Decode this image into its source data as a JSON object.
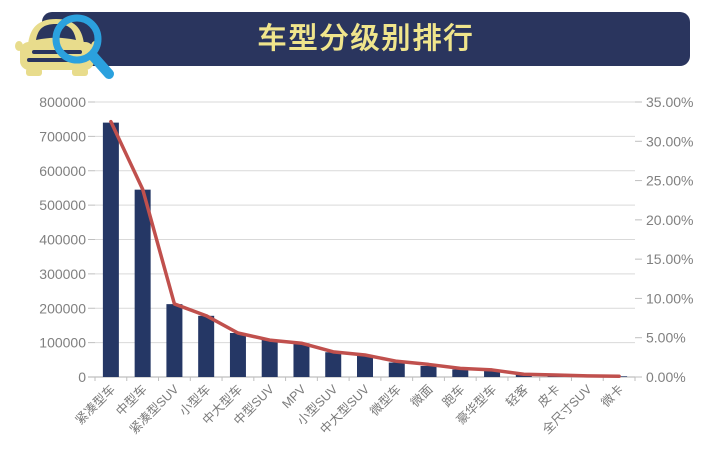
{
  "header": {
    "title": "车型分级别排行",
    "banner_bg": "#2A355E",
    "title_color": "#F0E58C",
    "icons": {
      "car_icon_color": "#E8DC8C",
      "magnifier_icon_color": "#2BA1DE"
    }
  },
  "chart_data": {
    "type": "bar",
    "subtype": "bar-with-line-combo",
    "title": "车型分级别排行",
    "xlabel": "",
    "ylabel_left": "",
    "ylabel_right": "",
    "legend": "none",
    "grid": "horizontal-left-axis-only",
    "categories": [
      "紧凑型车",
      "中型车",
      "紧凑型SUV",
      "小型车",
      "中大型车",
      "中型SUV",
      "MPV",
      "小型SUV",
      "中大型SUV",
      "微型车",
      "微面",
      "跑车",
      "豪华型车",
      "轻客",
      "皮卡",
      "全尺寸SUV",
      "微卡"
    ],
    "series": [
      {
        "name": "bars",
        "type": "bar",
        "axis": "left",
        "color": "#253765",
        "values": [
          740000,
          545000,
          212000,
          178000,
          128000,
          108000,
          98000,
          72000,
          63000,
          42000,
          32000,
          22000,
          20000,
          7000,
          4000,
          3000,
          2000
        ]
      },
      {
        "name": "line",
        "type": "line",
        "axis": "right",
        "color": "#C0504D",
        "values_percent": [
          32.5,
          23.9,
          9.3,
          7.8,
          5.6,
          4.7,
          4.3,
          3.2,
          2.8,
          2.0,
          1.6,
          1.1,
          0.9,
          0.35,
          0.25,
          0.15,
          0.1
        ]
      }
    ],
    "left_axis": {
      "min": 0,
      "max": 800000,
      "step": 100000,
      "tick_labels": [
        "800000",
        "700000",
        "600000",
        "500000",
        "400000",
        "300000",
        "200000",
        "100000",
        "0"
      ]
    },
    "right_axis": {
      "min": 0,
      "max": 35,
      "step": 5,
      "tick_labels": [
        "35.00%",
        "30.00%",
        "25.00%",
        "20.00%",
        "15.00%",
        "10.00%",
        "5.00%",
        "0.00%"
      ]
    },
    "colors": {
      "grid": "#D9D9D9",
      "axis": "#BFBFBF",
      "tick_label": "#808080",
      "x_label": "#7A7A7A"
    }
  }
}
